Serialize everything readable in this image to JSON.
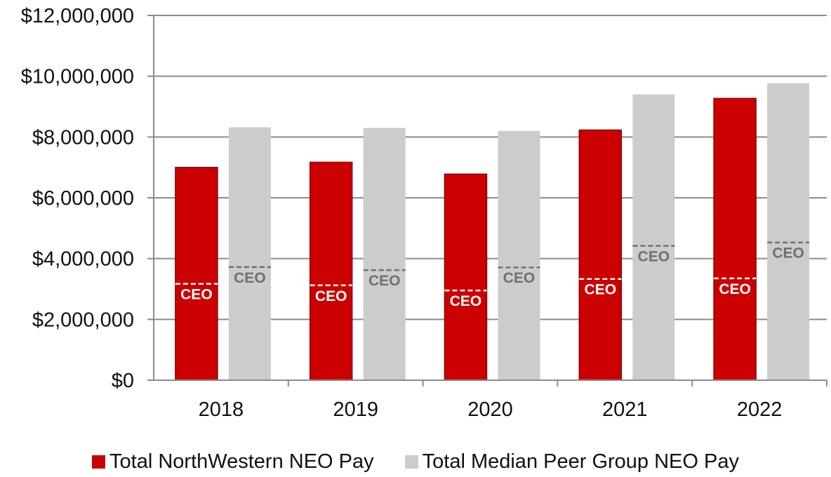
{
  "chart_data": {
    "type": "bar",
    "categories": [
      "2018",
      "2019",
      "2020",
      "2021",
      "2022"
    ],
    "series": [
      {
        "name": "Total NorthWestern NEO Pay",
        "color": "#cc0000",
        "values": [
          7000000,
          7170000,
          6780000,
          8230000,
          9270000
        ],
        "ceo_values": [
          3170000,
          3120000,
          2950000,
          3330000,
          3350000
        ]
      },
      {
        "name": "Total Median Peer Group NEO Pay",
        "color": "#cccccc",
        "values": [
          8320000,
          8300000,
          8200000,
          9400000,
          9770000
        ],
        "ceo_values": [
          3720000,
          3620000,
          3710000,
          4420000,
          4530000
        ]
      }
    ],
    "marker_label": "CEO",
    "ylim": [
      0,
      12000000
    ],
    "yticks": [
      0,
      2000000,
      4000000,
      6000000,
      8000000,
      10000000,
      12000000
    ],
    "ytick_labels": [
      "$0",
      "$2,000,000",
      "$4,000,000",
      "$6,000,000",
      "$8,000,000",
      "$10,000,000",
      "$12,000,000"
    ],
    "grid": true,
    "legend_position": "bottom"
  }
}
